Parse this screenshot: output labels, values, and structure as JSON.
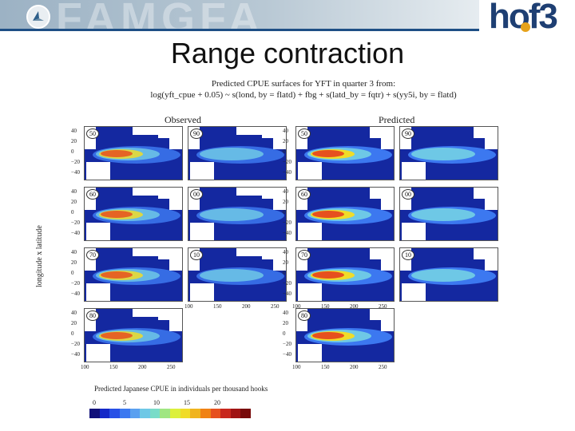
{
  "slide": {
    "title": "Range contraction",
    "logo_text": "hof3",
    "watermark": "FAMGFA"
  },
  "chart_data": {
    "type": "heatmap",
    "title": "Predicted CPUE surfaces for YFT in quarter 3 from:",
    "formula": "log(yft_cpue + 0.05) ~ s(lond, by = flatd) + fbg + s(latd_by = fqtr) + s(yy5i, by = flatd)",
    "column_headers": [
      "Observed",
      "Predicted"
    ],
    "ylabel": "longitude x latitude",
    "yticks": [
      "40",
      "20",
      "0",
      "−20",
      "−40"
    ],
    "xticks": [
      "100",
      "150",
      "200",
      "250"
    ],
    "panels": [
      {
        "decade": "50",
        "kind": "observed"
      },
      {
        "decade": "90",
        "kind": "observed"
      },
      {
        "decade": "60",
        "kind": "observed"
      },
      {
        "decade": "00",
        "kind": "observed"
      },
      {
        "decade": "70",
        "kind": "observed"
      },
      {
        "decade": "10",
        "kind": "observed"
      },
      {
        "decade": "80",
        "kind": "observed"
      },
      {
        "decade": "50",
        "kind": "predicted"
      },
      {
        "decade": "90",
        "kind": "predicted"
      },
      {
        "decade": "60",
        "kind": "predicted"
      },
      {
        "decade": "00",
        "kind": "predicted"
      },
      {
        "decade": "70",
        "kind": "predicted"
      },
      {
        "decade": "10",
        "kind": "predicted"
      },
      {
        "decade": "80",
        "kind": "predicted"
      }
    ],
    "legend": {
      "title": "Predicted Japanese CPUE in individuals per thousand hooks",
      "ticks": [
        "0",
        "5",
        "10",
        "15",
        "20"
      ],
      "colors": [
        "#10107a",
        "#1428c8",
        "#2850e6",
        "#3c78f0",
        "#5aa0f0",
        "#6ec8e6",
        "#78dcc8",
        "#a0e682",
        "#dcf03c",
        "#f0dc28",
        "#f0b41e",
        "#f08214",
        "#e6501e",
        "#c8281e",
        "#a01414",
        "#780a0a"
      ]
    }
  }
}
